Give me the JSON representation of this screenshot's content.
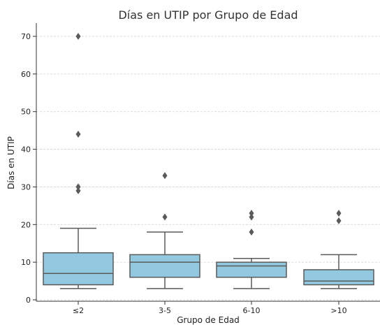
{
  "chart_data": {
    "type": "box",
    "title": "Días en UTIP por Grupo de Edad",
    "xlabel": "Grupo de Edad",
    "ylabel": "Días en UTIP",
    "ylim": [
      0,
      73
    ],
    "yticks": [
      0,
      10,
      20,
      30,
      40,
      50,
      60,
      70
    ],
    "grid": true,
    "colors": {
      "box": "#92c9e0",
      "line": "#5a5a5a"
    },
    "categories": [
      "≤2",
      "3-5",
      "6-10",
      ">10"
    ],
    "boxes": [
      {
        "category": "≤2",
        "whisker_low": 3,
        "q1": 4,
        "median": 7,
        "q3": 12.5,
        "whisker_high": 19,
        "outliers": [
          29,
          30,
          44,
          70
        ]
      },
      {
        "category": "3-5",
        "whisker_low": 3,
        "q1": 6,
        "median": 10,
        "q3": 12,
        "whisker_high": 18,
        "outliers": [
          22,
          33
        ]
      },
      {
        "category": "6-10",
        "whisker_low": 3,
        "q1": 6,
        "median": 9,
        "q3": 10,
        "whisker_high": 11,
        "outliers": [
          18,
          22,
          23
        ]
      },
      {
        "category": ">10",
        "whisker_low": 3,
        "q1": 4,
        "median": 5,
        "q3": 8,
        "whisker_high": 12,
        "outliers": [
          21,
          23
        ]
      }
    ]
  }
}
